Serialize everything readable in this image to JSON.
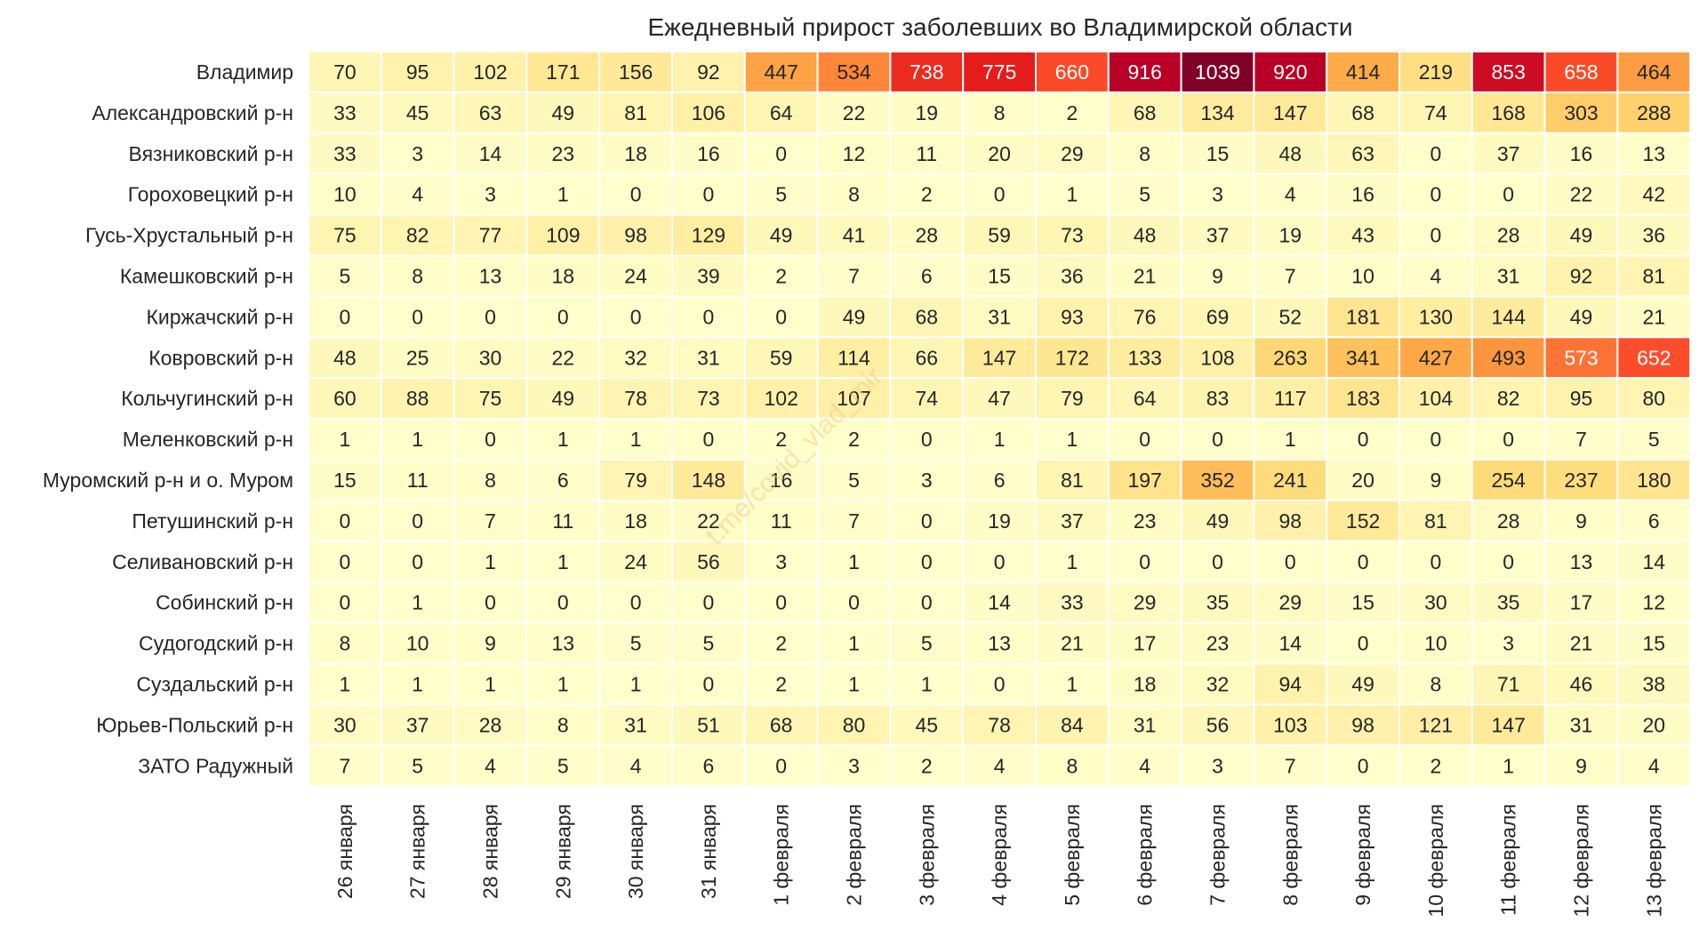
{
  "chart_data": {
    "type": "heatmap",
    "title": "Ежедневный прирост заболевших во Владимирской области",
    "watermark": "t.me/covid_vlad_mir",
    "colormap": [
      "#ffffcc",
      "#ffeda0",
      "#fed976",
      "#feb24c",
      "#fd8d3c",
      "#fc4e2a",
      "#e31a1c",
      "#bd0026",
      "#800026"
    ],
    "vmin": 0,
    "vmax": 1039,
    "columns": [
      "26 января",
      "27 января",
      "28 января",
      "29 января",
      "30 января",
      "31 января",
      "1 февраля",
      "2 февраля",
      "3 февраля",
      "4 февраля",
      "5 февраля",
      "6 февраля",
      "7 февраля",
      "8 февраля",
      "9 февраля",
      "10 февраля",
      "11 февраля",
      "12 февраля",
      "13 февраля"
    ],
    "rows": [
      "Владимир",
      "Александровский р-н",
      "Вязниковский р-н",
      "Гороховецкий р-н",
      "Гусь-Хрустальный р-н",
      "Камешковский р-н",
      "Киржачский р-н",
      "Ковровский р-н",
      "Кольчугинский р-н",
      "Меленковский р-н",
      "Муромский р-н и о. Муром",
      "Петушинский р-н",
      "Селивановский р-н",
      "Собинский р-н",
      "Судогодский р-н",
      "Суздальский р-н",
      "Юрьев-Польский р-н",
      "ЗАТО Радужный"
    ],
    "values": [
      [
        70,
        95,
        102,
        171,
        156,
        92,
        447,
        534,
        738,
        775,
        660,
        916,
        1039,
        920,
        414,
        219,
        853,
        658,
        464
      ],
      [
        33,
        45,
        63,
        49,
        81,
        106,
        64,
        22,
        19,
        8,
        2,
        68,
        134,
        147,
        68,
        74,
        168,
        303,
        288
      ],
      [
        33,
        3,
        14,
        23,
        18,
        16,
        0,
        12,
        11,
        20,
        29,
        8,
        15,
        48,
        63,
        0,
        37,
        16,
        13
      ],
      [
        10,
        4,
        3,
        1,
        0,
        0,
        5,
        8,
        2,
        0,
        1,
        5,
        3,
        4,
        16,
        0,
        0,
        22,
        42
      ],
      [
        75,
        82,
        77,
        109,
        98,
        129,
        49,
        41,
        28,
        59,
        73,
        48,
        37,
        19,
        43,
        0,
        28,
        49,
        36
      ],
      [
        5,
        8,
        13,
        18,
        24,
        39,
        2,
        7,
        6,
        15,
        36,
        21,
        9,
        7,
        10,
        4,
        31,
        92,
        81
      ],
      [
        0,
        0,
        0,
        0,
        0,
        0,
        0,
        49,
        68,
        31,
        93,
        76,
        69,
        52,
        181,
        130,
        144,
        49,
        21
      ],
      [
        48,
        25,
        30,
        22,
        32,
        31,
        59,
        114,
        66,
        147,
        172,
        133,
        108,
        263,
        341,
        427,
        493,
        573,
        652
      ],
      [
        60,
        88,
        75,
        49,
        78,
        73,
        102,
        107,
        74,
        47,
        79,
        64,
        83,
        117,
        183,
        104,
        82,
        95,
        80
      ],
      [
        1,
        1,
        0,
        1,
        1,
        0,
        2,
        2,
        0,
        1,
        1,
        0,
        0,
        1,
        0,
        0,
        0,
        7,
        5
      ],
      [
        15,
        11,
        8,
        6,
        79,
        148,
        16,
        5,
        3,
        6,
        81,
        197,
        352,
        241,
        20,
        9,
        254,
        237,
        180
      ],
      [
        0,
        0,
        7,
        11,
        18,
        22,
        11,
        7,
        0,
        19,
        37,
        23,
        49,
        98,
        152,
        81,
        28,
        9,
        6
      ],
      [
        0,
        0,
        1,
        1,
        24,
        56,
        3,
        1,
        0,
        0,
        1,
        0,
        0,
        0,
        0,
        0,
        0,
        13,
        14
      ],
      [
        0,
        1,
        0,
        0,
        0,
        0,
        0,
        0,
        0,
        14,
        33,
        29,
        35,
        29,
        15,
        30,
        35,
        17,
        12
      ],
      [
        8,
        10,
        9,
        13,
        5,
        5,
        2,
        1,
        5,
        13,
        21,
        17,
        23,
        14,
        0,
        10,
        3,
        21,
        15
      ],
      [
        1,
        1,
        1,
        1,
        1,
        0,
        2,
        1,
        1,
        0,
        1,
        18,
        32,
        94,
        49,
        8,
        71,
        46,
        38
      ],
      [
        30,
        37,
        28,
        8,
        31,
        51,
        68,
        80,
        45,
        78,
        84,
        31,
        56,
        103,
        98,
        121,
        147,
        31,
        20
      ],
      [
        7,
        5,
        4,
        5,
        4,
        6,
        0,
        3,
        2,
        4,
        8,
        4,
        3,
        7,
        0,
        2,
        1,
        9,
        4
      ]
    ]
  }
}
